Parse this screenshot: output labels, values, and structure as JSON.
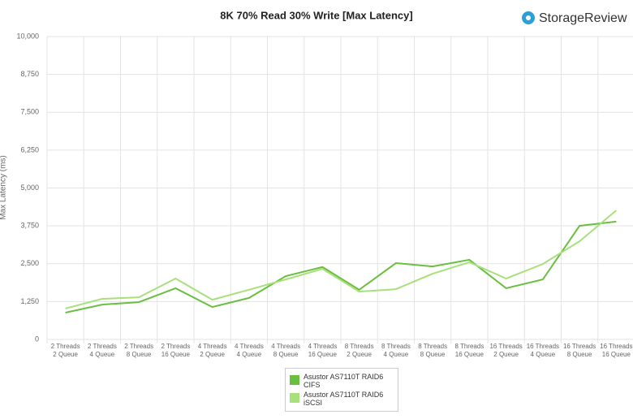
{
  "chart_data": {
    "type": "line",
    "title": "8K 70% Read 30% Write [Max Latency]",
    "brand": "StorageReview",
    "y_label": "Max Latency (ms)",
    "categories": [
      "2 Threads\n2 Queue",
      "2 Threads\n4 Queue",
      "2 Threads\n8 Queue",
      "2 Threads\n16 Queue",
      "4 Threads\n2 Queue",
      "4 Threads\n4 Queue",
      "4 Threads\n8 Queue",
      "4 Threads\n16 Queue",
      "8 Threads\n2 Queue",
      "8 Threads\n4 Queue",
      "8 Threads\n8 Queue",
      "8 Threads\n16 Queue",
      "16 Threads\n2 Queue",
      "16 Threads\n4 Queue",
      "16 Threads\n8 Queue",
      "16 Threads\n16 Queue"
    ],
    "series": [
      {
        "name": "Asustor AS7110T RAID6 CIFS",
        "color": "#6abf40",
        "values": [
          885,
          1150,
          1230,
          1690,
          1070,
          1370,
          2090,
          2390,
          1640,
          2520,
          2410,
          2630,
          1690,
          1980,
          3750,
          3890
        ]
      },
      {
        "name": "Asustor AS7110T RAID6 iSCSI",
        "color": "#a8e07c",
        "values": [
          1020,
          1340,
          1390,
          2010,
          1310,
          1640,
          1980,
          2330,
          1580,
          1660,
          2170,
          2550,
          2010,
          2490,
          3240,
          4260
        ]
      }
    ],
    "ylim": [
      0,
      10000
    ],
    "yticks": [
      0,
      {
        "value": 1250,
        "label": "1,250"
      },
      {
        "value": 2500,
        "label": "2,500"
      },
      {
        "value": 3750,
        "label": "3,750"
      },
      {
        "value": 5000,
        "label": "5,000"
      },
      {
        "value": 6250,
        "label": "6,250"
      },
      {
        "value": 7500,
        "label": "7,500"
      },
      {
        "value": 8750,
        "label": "8,750"
      },
      {
        "value": 10000,
        "label": "10,000"
      }
    ],
    "grid": true
  }
}
